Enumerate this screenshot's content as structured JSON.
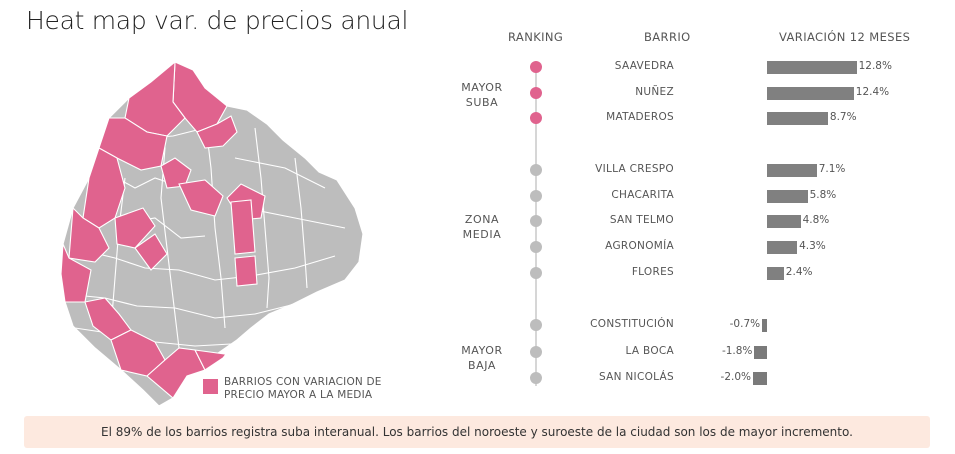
{
  "title": "Heat map var. de precios anual",
  "colors": {
    "highlight": "#e0638e",
    "neutral": "#bdbdbd",
    "bar": "#808080",
    "footer_bg": "#fde9df"
  },
  "legend": {
    "label": "BARRIOS CON VARIACION DE PRECIO MAYOR A LA MEDIA"
  },
  "headers": {
    "ranking": "RANKING",
    "barrio": "BARRIO",
    "variacion": "VARIACIÓN 12 MESES"
  },
  "groups": [
    {
      "label": "MAYOR SUBA",
      "highlight": true
    },
    {
      "label": "ZONA MEDIA",
      "highlight": false
    },
    {
      "label": "MAYOR BAJA",
      "highlight": false
    }
  ],
  "chart_data": {
    "type": "bar",
    "orientation": "horizontal",
    "categories": [
      "SAAVEDRA",
      "NUÑEZ",
      "MATADEROS",
      "VILLA CRESPO",
      "CHACARITA",
      "SAN TELMO",
      "AGRONOMÍA",
      "FLORES",
      "CONSTITUCIÓN",
      "LA BOCA",
      "SAN NICOLÁS"
    ],
    "values": [
      12.8,
      12.4,
      8.7,
      7.1,
      5.8,
      4.8,
      4.3,
      2.4,
      -0.7,
      -1.8,
      -2.0
    ],
    "value_labels": [
      "12.8%",
      "12.4%",
      "8.7%",
      "7.1%",
      "5.8%",
      "4.8%",
      "4.3%",
      "2.4%",
      "-0.7%",
      "-1.8%",
      "-2.0%"
    ],
    "group_index": [
      0,
      0,
      0,
      1,
      1,
      1,
      1,
      1,
      2,
      2,
      2
    ],
    "unit": "%"
  },
  "footer": {
    "text": "El 89% de los barrios registra suba interanual. Los barrios del noroeste y suroeste de la ciudad son los de mayor incremento."
  }
}
